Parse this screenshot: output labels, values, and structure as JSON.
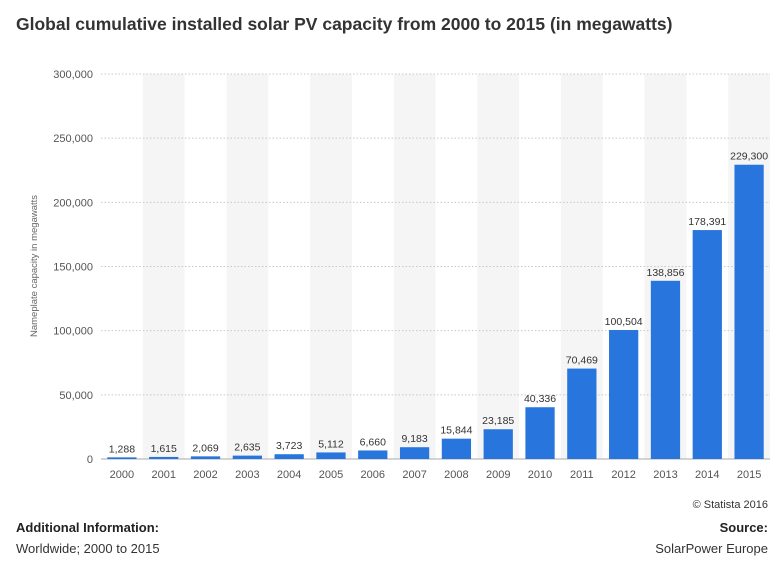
{
  "title": "Global cumulative installed solar PV capacity from 2000 to 2015 (in megawatts)",
  "chart_data": {
    "type": "bar",
    "categories": [
      "2000",
      "2001",
      "2002",
      "2003",
      "2004",
      "2005",
      "2006",
      "2007",
      "2008",
      "2009",
      "2010",
      "2011",
      "2012",
      "2013",
      "2014",
      "2015"
    ],
    "values": [
      1288,
      1615,
      2069,
      2635,
      3723,
      5112,
      6660,
      9183,
      15844,
      23185,
      40336,
      70469,
      100504,
      138856,
      178391,
      229300
    ],
    "value_labels": [
      "1,288",
      "1,615",
      "2,069",
      "2,635",
      "3,723",
      "5,112",
      "6,660",
      "9,183",
      "15,844",
      "23,185",
      "40,336",
      "70,469",
      "100,504",
      "138,856",
      "178,391",
      "229,300"
    ],
    "ylabel": "Nameplate capacity in megawatts",
    "xlabel": "",
    "ylim": [
      0,
      300000
    ],
    "yticks": [
      0,
      50000,
      100000,
      150000,
      200000,
      250000,
      300000
    ],
    "ytick_labels": [
      "0",
      "50,000",
      "100,000",
      "150,000",
      "200,000",
      "250,000",
      "300,000"
    ],
    "grid": true,
    "bar_color": "#2876dd",
    "band_color": "#f5f5f5"
  },
  "footer": {
    "copyright": "© Statista 2016",
    "additional_label": "Additional Information:",
    "additional_text": "Worldwide; 2000 to 2015",
    "source_label": "Source:",
    "source_text": "SolarPower Europe"
  }
}
